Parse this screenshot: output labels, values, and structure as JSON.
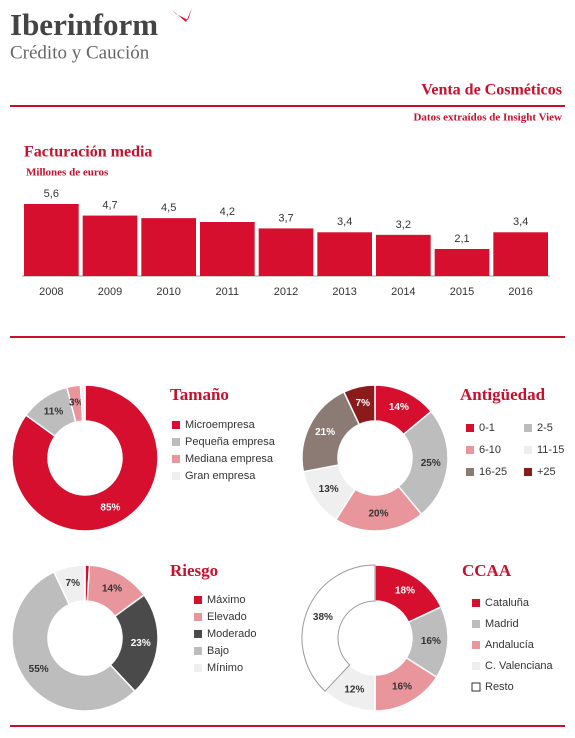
{
  "header": {
    "brand": "Iberinform",
    "tagline": "Crédito y Caución",
    "title": "Venta de Cosméticos",
    "source": "Datos extraídos de Insight View"
  },
  "chart_data": [
    {
      "type": "bar",
      "title": "Facturación media",
      "subtitle": "Millones de euros",
      "categories": [
        "2008",
        "2009",
        "2010",
        "2011",
        "2012",
        "2013",
        "2014",
        "2015",
        "2016"
      ],
      "values": [
        5.6,
        4.7,
        4.5,
        4.2,
        3.7,
        3.4,
        3.2,
        2.1,
        3.4
      ],
      "value_labels": [
        "5,6",
        "4,7",
        "4,5",
        "4,2",
        "3,7",
        "3,4",
        "3,2",
        "2,1",
        "3,4"
      ],
      "color": "#d50f2d"
    },
    {
      "type": "pie",
      "title": "Tamaño",
      "categories": [
        "Microempresa",
        "Pequeña empresa",
        "Mediana empresa",
        "Gran empresa"
      ],
      "values": [
        85,
        11,
        3,
        1
      ],
      "value_labels": [
        "85%",
        "11%",
        "3%",
        null
      ],
      "colors": [
        "#d50f2d",
        "#bdbdbd",
        "#e8959b",
        "#efefef"
      ]
    },
    {
      "type": "pie",
      "title": "Antigüedad",
      "categories": [
        "0-1",
        "2-5",
        "6-10",
        "11-15",
        "16-25",
        "+25"
      ],
      "values": [
        14,
        25,
        20,
        13,
        21,
        7
      ],
      "value_labels": [
        "14%",
        "25%",
        "20%",
        "13%",
        "21%",
        "7%"
      ],
      "colors": [
        "#d50f2d",
        "#bdbdbd",
        "#e8959b",
        "#efefef",
        "#8c7b75",
        "#8b1a1a"
      ]
    },
    {
      "type": "pie",
      "title": "Riesgo",
      "categories": [
        "Máximo",
        "Elevado",
        "Moderado",
        "Bajo",
        "Mínimo"
      ],
      "values": [
        1,
        14,
        23,
        55,
        7
      ],
      "value_labels": [
        null,
        "14%",
        "23%",
        "55%",
        "7%"
      ],
      "colors": [
        "#d50f2d",
        "#e8959b",
        "#4a4a4a",
        "#bdbdbd",
        "#efefef"
      ]
    },
    {
      "type": "pie",
      "title": "CCAA",
      "categories": [
        "Cataluña",
        "Madrid",
        "Andalucía",
        "C. Valenciana",
        "Resto"
      ],
      "values": [
        18,
        16,
        16,
        12,
        38
      ],
      "value_labels": [
        "18%",
        "16%",
        "16%",
        "12%",
        "38%"
      ],
      "colors": [
        "#d50f2d",
        "#bdbdbd",
        "#e8959b",
        "#efefef",
        "#ffffff"
      ]
    }
  ]
}
